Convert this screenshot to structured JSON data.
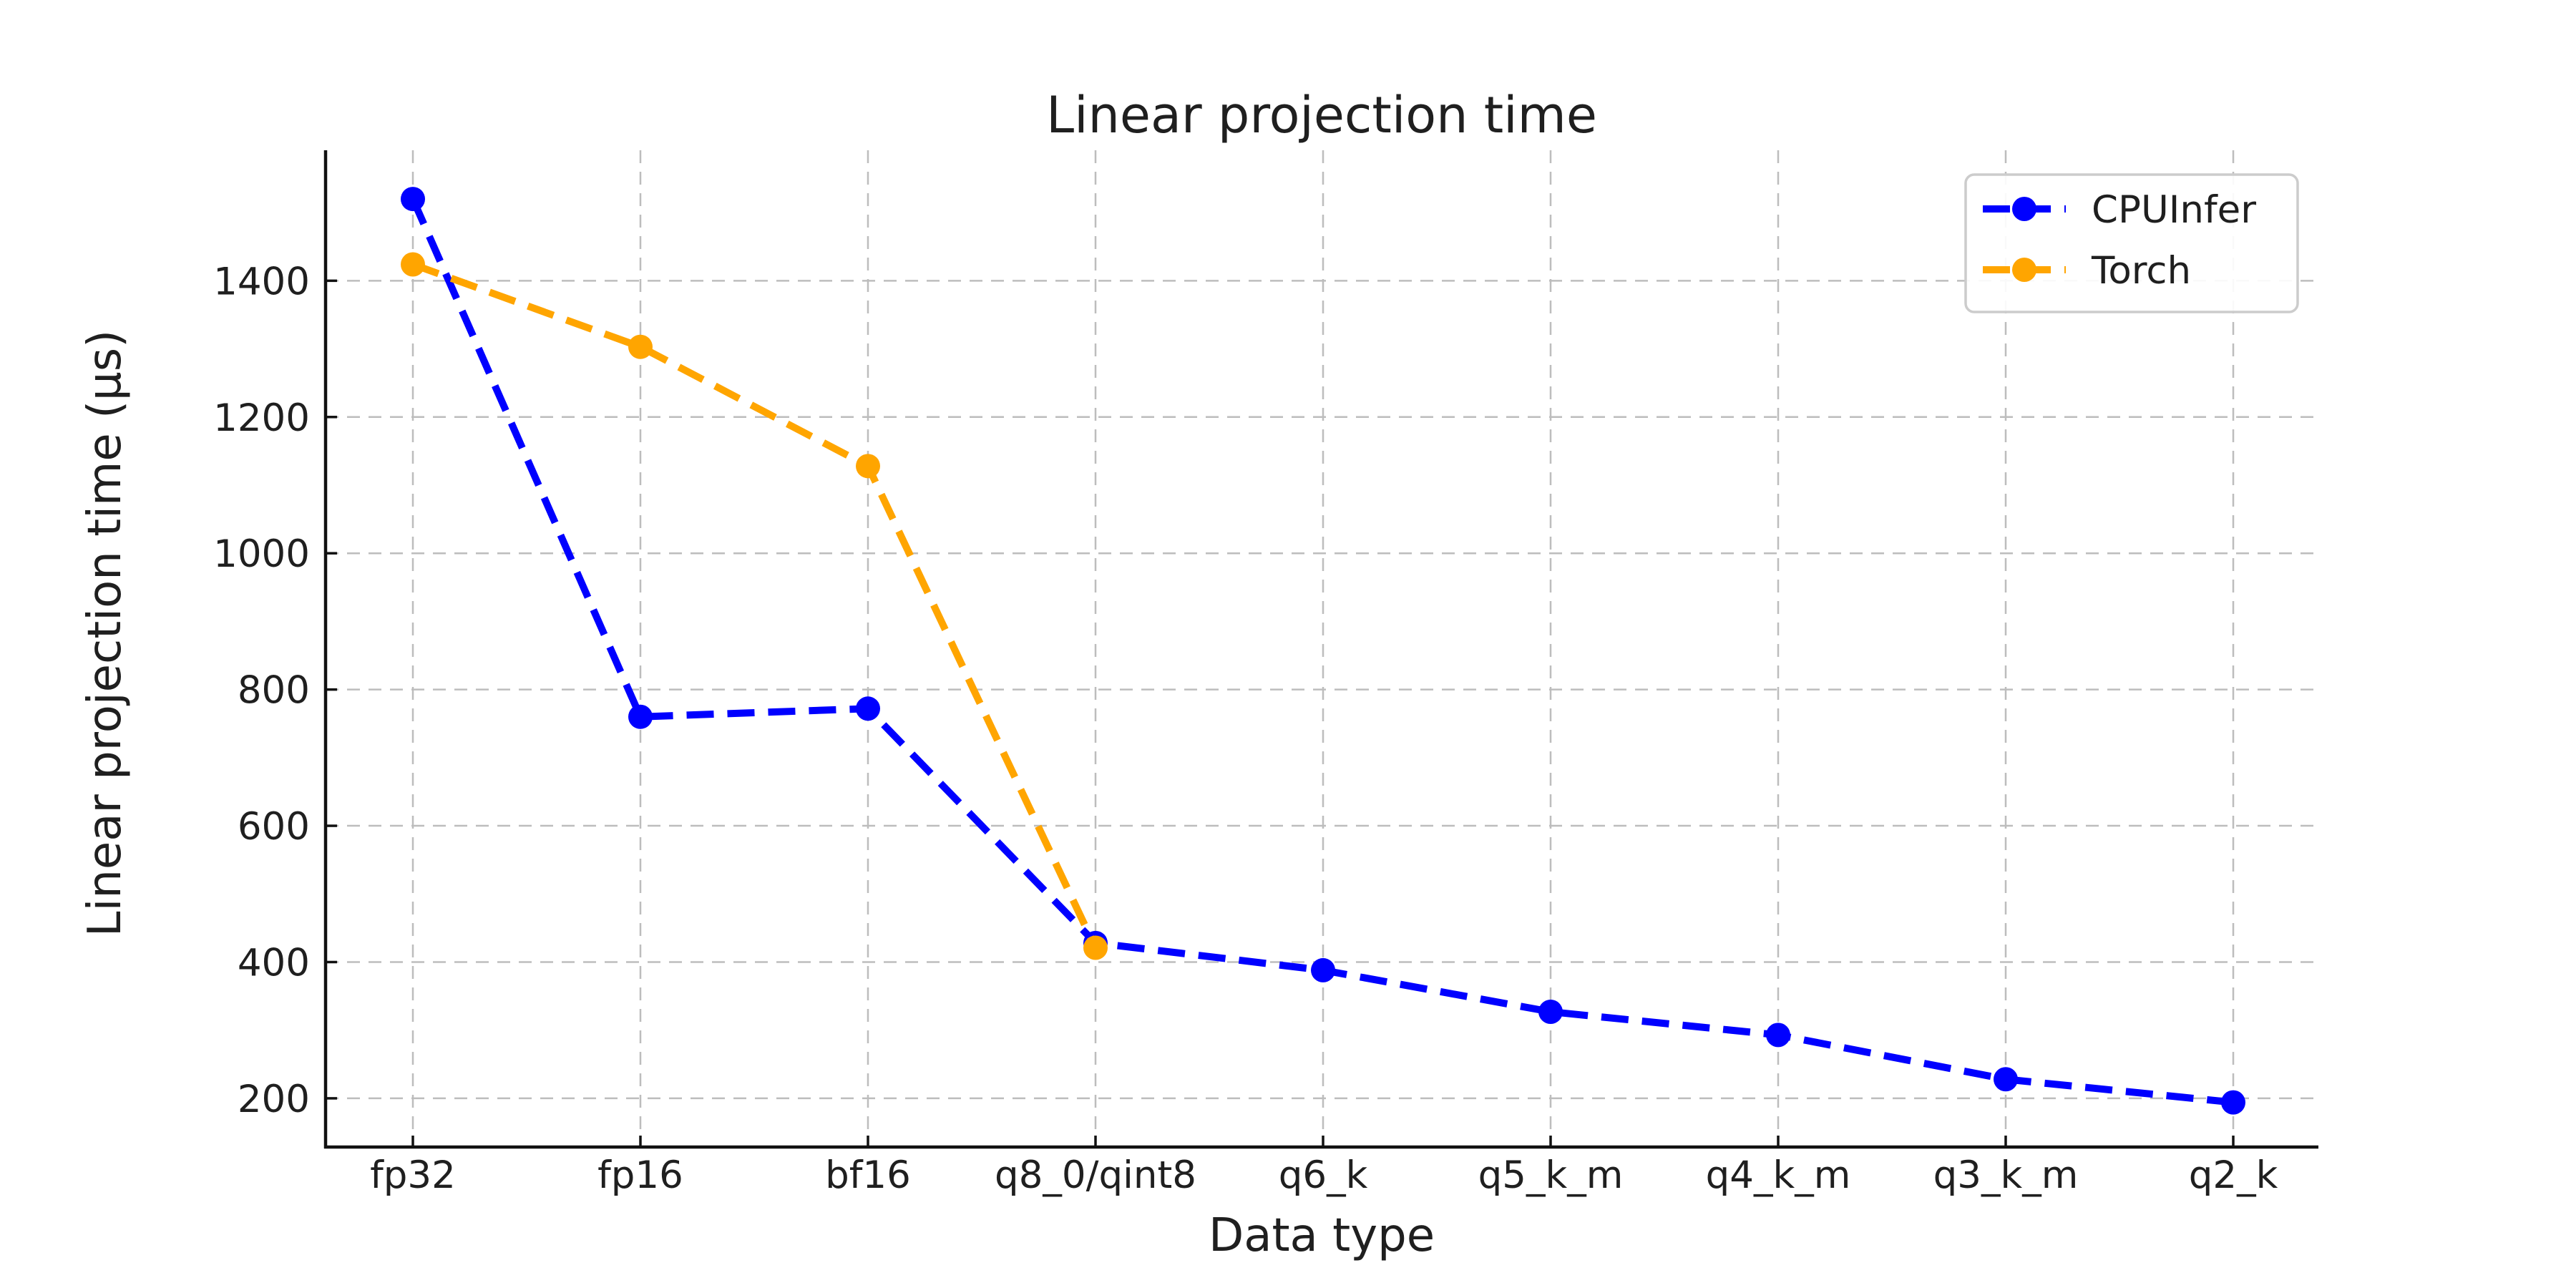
{
  "chart_data": {
    "type": "line",
    "title": "Linear projection time",
    "xlabel": "Data type",
    "ylabel": "Linear projection time (µs)",
    "categories": [
      "fp32",
      "fp16",
      "bf16",
      "q8_0/qint8",
      "q6_k",
      "q5_k_m",
      "q4_k_m",
      "q3_k_m",
      "q2_k"
    ],
    "series": [
      {
        "name": "CPUInfer",
        "color": "#0000ff",
        "values": [
          1520,
          760,
          772,
          428,
          388,
          327,
          293,
          228,
          194
        ]
      },
      {
        "name": "Torch",
        "color": "#ffa500",
        "values": [
          1424,
          1303,
          1128,
          421,
          null,
          null,
          null,
          null,
          null
        ]
      }
    ],
    "yticks": [
      200,
      400,
      600,
      800,
      1000,
      1200,
      1400
    ],
    "ylim": [
      128.5,
      1591.5
    ],
    "grid": true,
    "grid_style": "dashed",
    "line_style": "dashed",
    "marker": "circle",
    "legend_position": "upper right",
    "colors": {
      "grid": "#bdbdbd",
      "spine": "#111111",
      "text": "#1f1f1f",
      "legend_border": "#cccccc",
      "background": "#ffffff"
    }
  }
}
